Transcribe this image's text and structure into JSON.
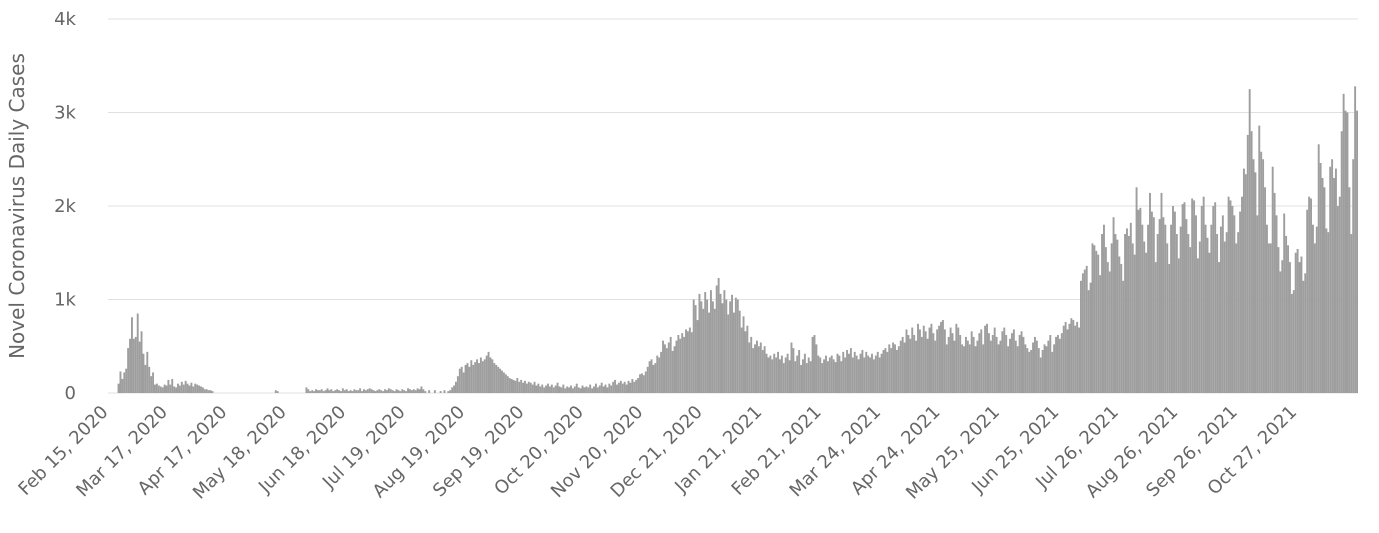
{
  "chart_data": {
    "type": "bar",
    "y_label": "Novel Coronavirus Daily Cases",
    "color": "#9e9e9e",
    "grid": true,
    "ylim": [
      0,
      4000
    ],
    "yticks": [
      0,
      {
        "value": 1000,
        "label": "1k"
      },
      {
        "value": 2000,
        "label": "2k"
      },
      {
        "value": 3000,
        "label": "3k"
      },
      {
        "value": 4000,
        "label": "4k"
      }
    ],
    "categories": [
      "Feb 15, 2020",
      null,
      null,
      null,
      null,
      null,
      null,
      null,
      null,
      null,
      null,
      null,
      null,
      null,
      null,
      null,
      null,
      null,
      null,
      null,
      null,
      null,
      null,
      null,
      null,
      null,
      null,
      null,
      null,
      null,
      null,
      "Mar 17, 2020",
      null,
      null,
      null,
      null,
      null,
      null,
      null,
      null,
      null,
      null,
      null,
      null,
      null,
      null,
      null,
      null,
      null,
      null,
      null,
      null,
      null,
      null,
      null,
      null,
      null,
      null,
      null,
      null,
      null,
      null,
      "Apr 17, 2020",
      null,
      null,
      null,
      null,
      null,
      null,
      null,
      null,
      null,
      null,
      null,
      null,
      null,
      null,
      null,
      null,
      null,
      null,
      null,
      null,
      null,
      null,
      null,
      null,
      null,
      null,
      null,
      null,
      null,
      null,
      "May 18, 2020",
      null,
      null,
      null,
      null,
      null,
      null,
      null,
      null,
      null,
      null,
      null,
      null,
      null,
      null,
      null,
      null,
      null,
      null,
      null,
      null,
      null,
      null,
      null,
      null,
      null,
      null,
      null,
      null,
      null,
      null,
      "Jun 18, 2020",
      null,
      null,
      null,
      null,
      null,
      null,
      null,
      null,
      null,
      null,
      null,
      null,
      null,
      null,
      null,
      null,
      null,
      null,
      null,
      null,
      null,
      null,
      null,
      null,
      null,
      null,
      null,
      null,
      null,
      null,
      "Jul 19, 2020",
      null,
      null,
      null,
      null,
      null,
      null,
      null,
      null,
      null,
      null,
      null,
      null,
      null,
      null,
      null,
      null,
      null,
      null,
      null,
      null,
      null,
      null,
      null,
      null,
      null,
      null,
      null,
      null,
      null,
      null,
      "Aug 19, 2020",
      null,
      null,
      null,
      null,
      null,
      null,
      null,
      null,
      null,
      null,
      null,
      null,
      null,
      null,
      null,
      null,
      null,
      null,
      null,
      null,
      null,
      null,
      null,
      null,
      null,
      null,
      null,
      null,
      null,
      null,
      "Sep 19, 2020",
      null,
      null,
      null,
      null,
      null,
      null,
      null,
      null,
      null,
      null,
      null,
      null,
      null,
      null,
      null,
      null,
      null,
      null,
      null,
      null,
      null,
      null,
      null,
      null,
      null,
      null,
      null,
      null,
      null,
      null,
      "Oct 20, 2020",
      null,
      null,
      null,
      null,
      null,
      null,
      null,
      null,
      null,
      null,
      null,
      null,
      null,
      null,
      null,
      null,
      null,
      null,
      null,
      null,
      null,
      null,
      null,
      null,
      null,
      null,
      null,
      null,
      null,
      null,
      "Nov 20, 2020",
      null,
      null,
      null,
      null,
      null,
      null,
      null,
      null,
      null,
      null,
      null,
      null,
      null,
      null,
      null,
      null,
      null,
      null,
      null,
      null,
      null,
      null,
      null,
      null,
      null,
      null,
      null,
      null,
      null,
      null,
      "Dec 21, 2020",
      null,
      null,
      null,
      null,
      null,
      null,
      null,
      null,
      null,
      null,
      null,
      null,
      null,
      null,
      null,
      null,
      null,
      null,
      null,
      null,
      null,
      null,
      null,
      null,
      null,
      null,
      null,
      null,
      null,
      null,
      "Jan 21, 2021",
      null,
      null,
      null,
      null,
      null,
      null,
      null,
      null,
      null,
      null,
      null,
      null,
      null,
      null,
      null,
      null,
      null,
      null,
      null,
      null,
      null,
      null,
      null,
      null,
      null,
      null,
      null,
      null,
      null,
      null,
      "Feb 21, 2021",
      null,
      null,
      null,
      null,
      null,
      null,
      null,
      null,
      null,
      null,
      null,
      null,
      null,
      null,
      null,
      null,
      null,
      null,
      null,
      null,
      null,
      null,
      null,
      null,
      null,
      null,
      null,
      null,
      null,
      null,
      "Mar 24, 2021",
      null,
      null,
      null,
      null,
      null,
      null,
      null,
      null,
      null,
      null,
      null,
      null,
      null,
      null,
      null,
      null,
      null,
      null,
      null,
      null,
      null,
      null,
      null,
      null,
      null,
      null,
      null,
      null,
      null,
      null,
      "Apr 24, 2021",
      null,
      null,
      null,
      null,
      null,
      null,
      null,
      null,
      null,
      null,
      null,
      null,
      null,
      null,
      null,
      null,
      null,
      null,
      null,
      null,
      null,
      null,
      null,
      null,
      null,
      null,
      null,
      null,
      null,
      null,
      "May 25, 2021",
      null,
      null,
      null,
      null,
      null,
      null,
      null,
      null,
      null,
      null,
      null,
      null,
      null,
      null,
      null,
      null,
      null,
      null,
      null,
      null,
      null,
      null,
      null,
      null,
      null,
      null,
      null,
      null,
      null,
      null,
      "Jun 25, 2021",
      null,
      null,
      null,
      null,
      null,
      null,
      null,
      null,
      null,
      null,
      null,
      null,
      null,
      null,
      null,
      null,
      null,
      null,
      null,
      null,
      null,
      null,
      null,
      null,
      null,
      null,
      null,
      null,
      null,
      null,
      "Jul 26, 2021",
      null,
      null,
      null,
      null,
      null,
      null,
      null,
      null,
      null,
      null,
      null,
      null,
      null,
      null,
      null,
      null,
      null,
      null,
      null,
      null,
      null,
      null,
      null,
      null,
      null,
      null,
      null,
      null,
      null,
      null,
      "Aug 26, 2021",
      null,
      null,
      null,
      null,
      null,
      null,
      null,
      null,
      null,
      null,
      null,
      null,
      null,
      null,
      null,
      null,
      null,
      null,
      null,
      null,
      null,
      null,
      null,
      null,
      null,
      null,
      null,
      null,
      null,
      null,
      "Sep 26, 2021",
      null,
      null,
      null,
      null,
      null,
      null,
      null,
      null,
      null,
      null,
      null,
      null,
      null,
      null,
      null,
      null,
      null,
      null,
      null,
      null,
      null,
      null,
      null,
      null,
      null,
      null,
      null,
      null,
      null,
      null,
      "Oct 27, 2021",
      null,
      null,
      null,
      null,
      null,
      null,
      null,
      null,
      null,
      null,
      null,
      null,
      null,
      null,
      null,
      null,
      null,
      null,
      null,
      null,
      null,
      null,
      null,
      null,
      null,
      null,
      null,
      null,
      null,
      null,
      null
    ],
    "values": [
      0,
      0,
      0,
      0,
      0,
      100,
      230,
      150,
      220,
      260,
      480,
      580,
      810,
      580,
      600,
      850,
      550,
      660,
      420,
      300,
      440,
      280,
      180,
      220,
      90,
      100,
      80,
      70,
      60,
      90,
      80,
      140,
      90,
      150,
      70,
      60,
      100,
      80,
      120,
      90,
      130,
      100,
      80,
      110,
      70,
      100,
      90,
      80,
      70,
      60,
      40,
      40,
      30,
      30,
      20,
      0,
      0,
      0,
      0,
      0,
      0,
      0,
      0,
      0,
      0,
      0,
      0,
      0,
      0,
      0,
      0,
      0,
      0,
      0,
      0,
      0,
      0,
      0,
      0,
      0,
      0,
      0,
      0,
      0,
      0,
      0,
      0,
      30,
      20,
      0,
      0,
      0,
      0,
      0,
      0,
      0,
      0,
      0,
      0,
      0,
      0,
      0,
      0,
      60,
      40,
      20,
      30,
      20,
      40,
      30,
      30,
      40,
      20,
      30,
      50,
      30,
      40,
      20,
      30,
      40,
      30,
      20,
      50,
      30,
      40,
      20,
      30,
      20,
      40,
      30,
      30,
      50,
      20,
      40,
      30,
      40,
      50,
      40,
      30,
      20,
      30,
      40,
      30,
      20,
      40,
      30,
      50,
      40,
      30,
      20,
      40,
      30,
      20,
      40,
      30,
      20,
      50,
      40,
      30,
      40,
      30,
      50,
      40,
      70,
      40,
      20,
      0,
      30,
      0,
      0,
      30,
      0,
      0,
      20,
      0,
      30,
      0,
      20,
      30,
      60,
      80,
      120,
      180,
      260,
      280,
      220,
      300,
      320,
      280,
      350,
      300,
      330,
      360,
      320,
      380,
      340,
      360,
      400,
      440,
      380,
      360,
      320,
      300,
      280,
      260,
      240,
      220,
      200,
      180,
      160,
      150,
      140,
      130,
      160,
      120,
      140,
      110,
      130,
      100,
      120,
      110,
      90,
      120,
      80,
      100,
      70,
      90,
      60,
      80,
      100,
      70,
      90,
      60,
      80,
      110,
      70,
      60,
      90,
      50,
      70,
      60,
      80,
      50,
      70,
      100,
      60,
      50,
      80,
      60,
      70,
      60,
      90,
      50,
      70,
      100,
      60,
      80,
      110,
      70,
      90,
      60,
      100,
      80,
      120,
      140,
      90,
      110,
      130,
      100,
      120,
      90,
      130,
      110,
      150,
      120,
      140,
      160,
      200,
      210,
      190,
      230,
      280,
      340,
      360,
      300,
      320,
      400,
      380,
      440,
      560,
      520,
      480,
      540,
      600,
      450,
      500,
      560,
      620,
      580,
      640,
      600,
      680,
      660,
      700,
      650,
      1000,
      940,
      780,
      1060,
      980,
      900,
      1080,
      1000,
      860,
      1100,
      980,
      900,
      1150,
      1230,
      1060,
      960,
      1100,
      1000,
      840,
      980,
      1050,
      860,
      1020,
      1000,
      880,
      700,
      820,
      660,
      720,
      540,
      600,
      480,
      520,
      560,
      500,
      540,
      460,
      500,
      420,
      380,
      400,
      360,
      420,
      380,
      440,
      360,
      400,
      320,
      380,
      420,
      350,
      540,
      480,
      340,
      400,
      460,
      300,
      360,
      420,
      320,
      380,
      340,
      600,
      620,
      520,
      400,
      380,
      320,
      360,
      400,
      340,
      380,
      400,
      360,
      330,
      420,
      400,
      340,
      440,
      380,
      460,
      420,
      480,
      380,
      440,
      400,
      360,
      420,
      460,
      380,
      440,
      400,
      380,
      420,
      360,
      400,
      440,
      380,
      420,
      460,
      480,
      440,
      520,
      480,
      540,
      520,
      460,
      500,
      560,
      600,
      540,
      680,
      620,
      580,
      700,
      620,
      560,
      740,
      680,
      600,
      720,
      660,
      580,
      700,
      740,
      640,
      560,
      680,
      720,
      760,
      780,
      680,
      520,
      600,
      700,
      640,
      560,
      740,
      700,
      620,
      520,
      500,
      600,
      560,
      520,
      660,
      600,
      500,
      560,
      640,
      680,
      520,
      720,
      740,
      640,
      560,
      620,
      700,
      600,
      520,
      560,
      660,
      700,
      620,
      500,
      580,
      640,
      680,
      560,
      500,
      620,
      660,
      600,
      520,
      480,
      440,
      460,
      540,
      600,
      560,
      480,
      380,
      460,
      520,
      500,
      560,
      620,
      440,
      520,
      600,
      620,
      580,
      640,
      720,
      760,
      680,
      740,
      800,
      780,
      720,
      760,
      700,
      1200,
      1280,
      1320,
      1360,
      1100,
      1180,
      1600,
      1580,
      1520,
      1480,
      1260,
      1700,
      1800,
      1560,
      1400,
      1300,
      1600,
      1880,
      1700,
      1640,
      1460,
      1380,
      1200,
      1700,
      1760,
      1680,
      1820,
      1600,
      1480,
      2200,
      1960,
      1980,
      1800,
      1620,
      1500,
      1800,
      2140,
      1940,
      1880,
      1400,
      1700,
      1860,
      2140,
      1880,
      1800,
      1600,
      1380,
      1800,
      2000,
      1940,
      1700,
      1440,
      1780,
      2020,
      2040,
      1860,
      1700,
      1560,
      2080,
      2060,
      1900,
      1440,
      1620,
      2000,
      2100,
      1800,
      1660,
      1500,
      1800,
      2000,
      2040,
      1700,
      1400,
      1780,
      1900,
      1620,
      1720,
      2100,
      2060,
      2000,
      1900,
      1600,
      1720,
      1940,
      2100,
      2400,
      2340,
      2760,
      3250,
      2800,
      2500,
      2360,
      1900,
      2860,
      2580,
      2500,
      2200,
      1800,
      1600,
      1600,
      2420,
      2140,
      1900,
      1560,
      1300,
      1420,
      1920,
      1680,
      1580,
      1400,
      1060,
      1100,
      1500,
      1540,
      1400,
      1460,
      1200,
      1280,
      1960,
      2100,
      2080,
      1800,
      1600,
      1780,
      2660,
      2460,
      2300,
      2200,
      1760,
      1720,
      2420,
      2500,
      2300,
      2400,
      2000,
      2100,
      2800,
      3200,
      3020,
      3000,
      2200,
      1700,
      2500,
      3280,
      3020
    ]
  }
}
